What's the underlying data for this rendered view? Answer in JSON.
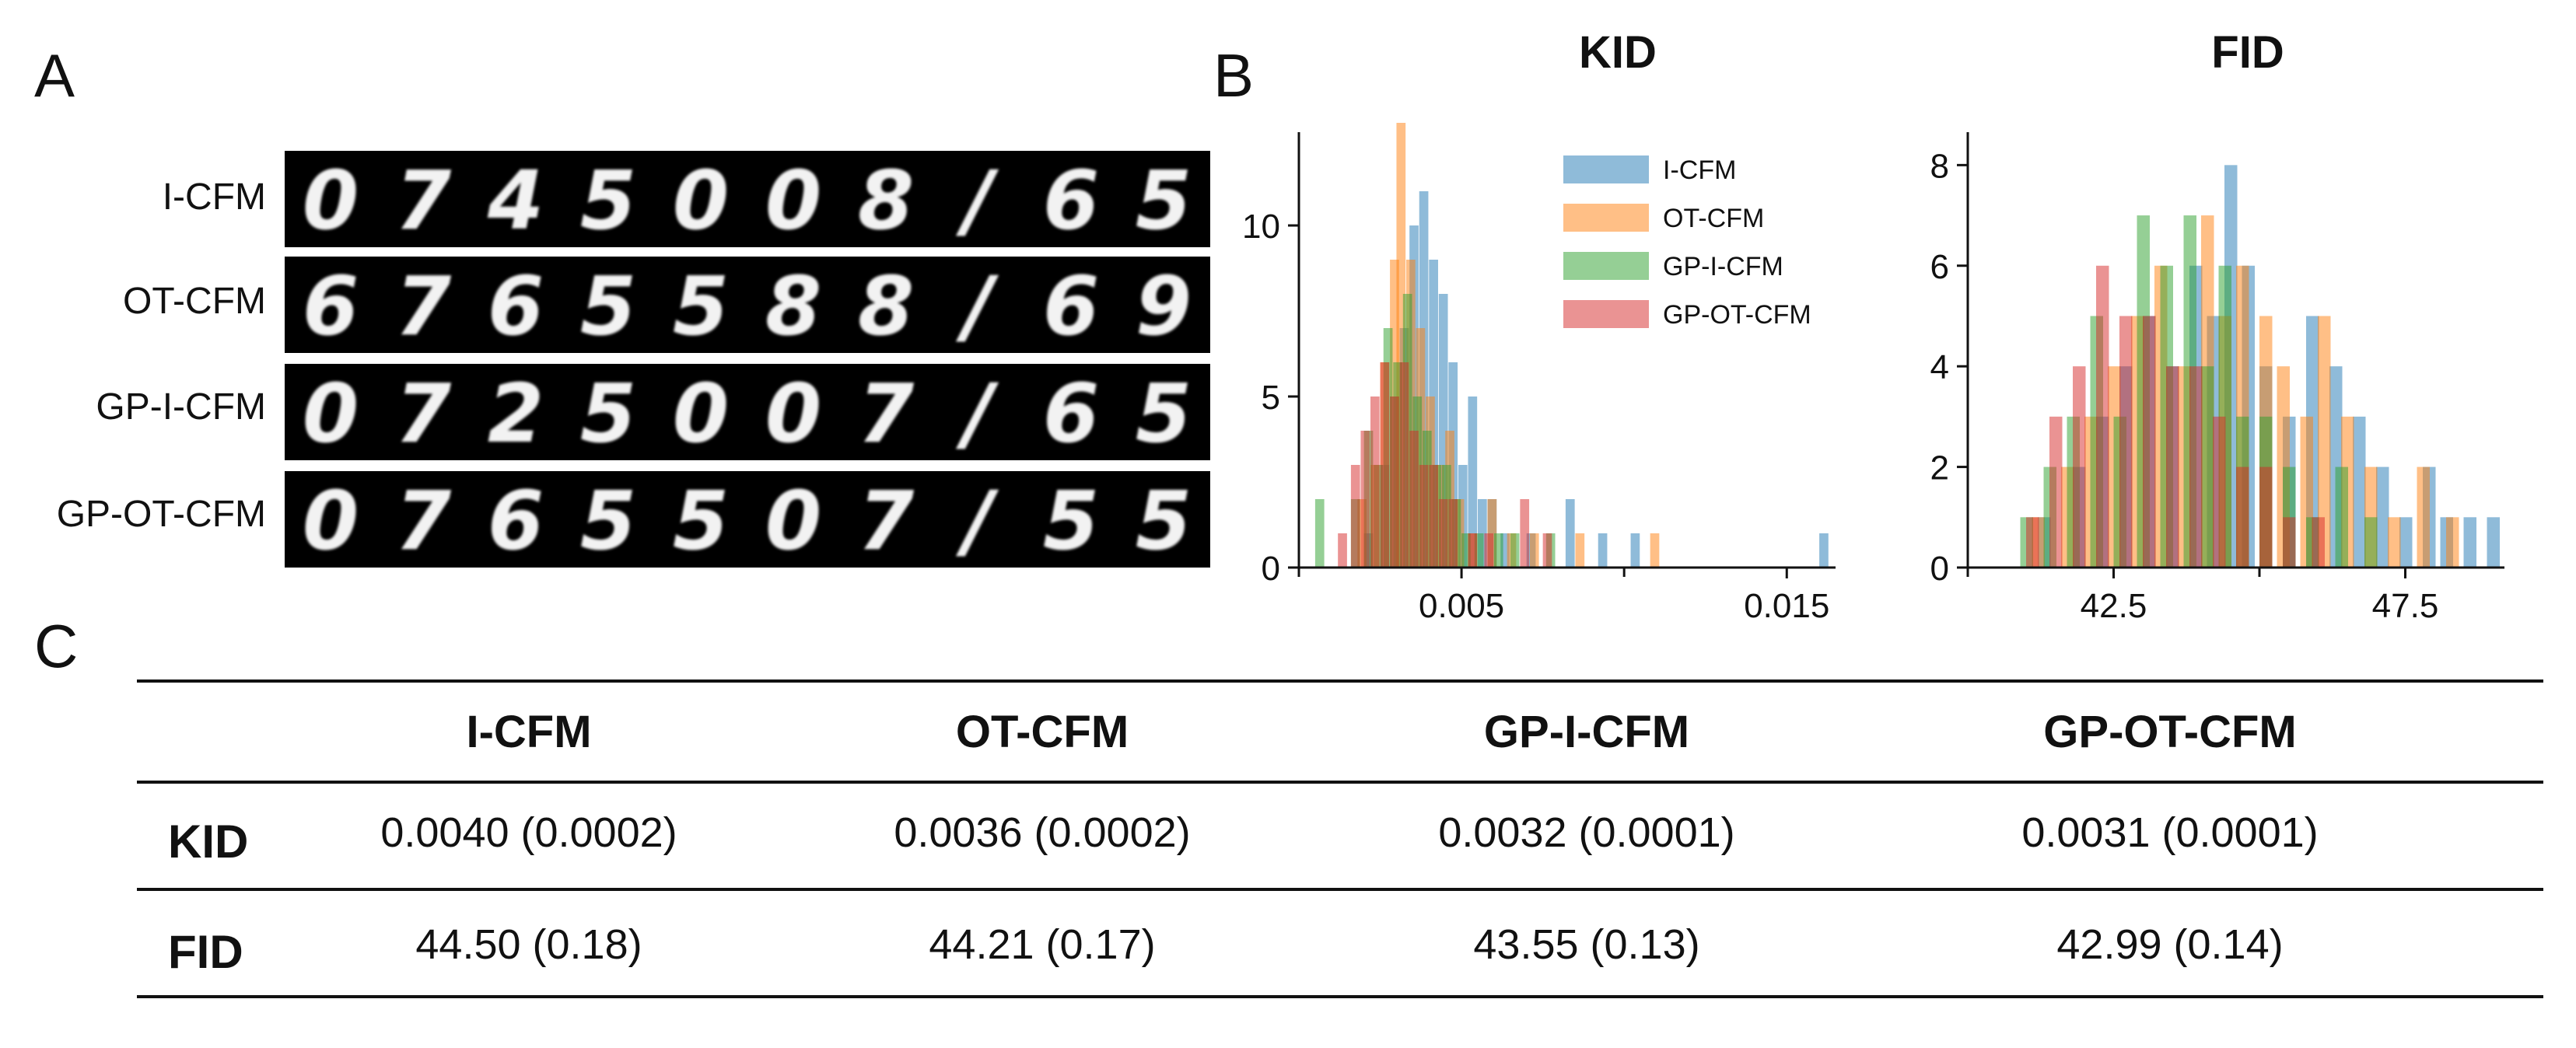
{
  "panels": {
    "a": "A",
    "b": "B",
    "c": "C"
  },
  "samples": {
    "rows": [
      "I-CFM",
      "OT-CFM",
      "GP-I-CFM",
      "GP-OT-CFM"
    ],
    "digits": [
      [
        "0",
        "7",
        "4",
        "5",
        "0",
        "0",
        "8",
        "/",
        "6",
        "5"
      ],
      [
        "6",
        "7",
        "6",
        "5",
        "5",
        "8",
        "8",
        "/",
        "6",
        "9"
      ],
      [
        "0",
        "7",
        "2",
        "5",
        "0",
        "0",
        "7",
        "/",
        "6",
        "5"
      ],
      [
        "0",
        "7",
        "6",
        "5",
        "5",
        "0",
        "7",
        "/",
        "5",
        "5"
      ]
    ]
  },
  "chart_data": [
    {
      "type": "histogram",
      "title": "KID",
      "xlabel": "",
      "ylabel": "",
      "xlim": [
        0.0,
        0.0165
      ],
      "ylim": [
        0,
        12.5
      ],
      "xticks": [
        0.005,
        0.015
      ],
      "xtick_labels": [
        "0.005",
        "0.015"
      ],
      "yticks": [
        0,
        5,
        10
      ],
      "ytick_labels": [
        "0",
        "5",
        "10"
      ],
      "legend": "top-right",
      "series": [
        {
          "name": "I-CFM",
          "color": "#1f77b4",
          "bins": [
            [
              0.002,
              1
            ],
            [
              0.0025,
              3
            ],
            [
              0.0028,
              5
            ],
            [
              0.0031,
              7
            ],
            [
              0.0034,
              10
            ],
            [
              0.0037,
              11
            ],
            [
              0.004,
              9
            ],
            [
              0.0043,
              8
            ],
            [
              0.0046,
              6
            ],
            [
              0.0049,
              3
            ],
            [
              0.0052,
              5
            ],
            [
              0.0055,
              2
            ],
            [
              0.0058,
              2
            ],
            [
              0.0062,
              1
            ],
            [
              0.007,
              1
            ],
            [
              0.0082,
              2
            ],
            [
              0.0092,
              1
            ],
            [
              0.0102,
              1
            ],
            [
              0.016,
              1
            ]
          ]
        },
        {
          "name": "OT-CFM",
          "color": "#ff7f0e",
          "bins": [
            [
              0.0018,
              2
            ],
            [
              0.0022,
              3
            ],
            [
              0.0025,
              6
            ],
            [
              0.0028,
              9
            ],
            [
              0.003,
              13
            ],
            [
              0.0033,
              9
            ],
            [
              0.0036,
              7
            ],
            [
              0.0039,
              5
            ],
            [
              0.0042,
              3
            ],
            [
              0.0045,
              4
            ],
            [
              0.0048,
              2
            ],
            [
              0.0052,
              1
            ],
            [
              0.0058,
              2
            ],
            [
              0.0064,
              1
            ],
            [
              0.0071,
              1
            ],
            [
              0.0085,
              1
            ],
            [
              0.0108,
              1
            ]
          ]
        },
        {
          "name": "GP-I-CFM",
          "color": "#2ca02c",
          "bins": [
            [
              0.0005,
              2
            ],
            [
              0.0016,
              2
            ],
            [
              0.002,
              4
            ],
            [
              0.0023,
              3
            ],
            [
              0.0026,
              7
            ],
            [
              0.0029,
              6
            ],
            [
              0.0032,
              8
            ],
            [
              0.0035,
              5
            ],
            [
              0.0038,
              4
            ],
            [
              0.0041,
              3
            ],
            [
              0.0044,
              3
            ],
            [
              0.0047,
              2
            ],
            [
              0.005,
              1
            ],
            [
              0.0054,
              1
            ],
            [
              0.006,
              1
            ],
            [
              0.0065,
              1
            ],
            [
              0.0076,
              1
            ]
          ]
        },
        {
          "name": "GP-OT-CFM",
          "color": "#d62728",
          "bins": [
            [
              0.0012,
              1
            ],
            [
              0.0016,
              3
            ],
            [
              0.0019,
              4
            ],
            [
              0.0022,
              5
            ],
            [
              0.0025,
              6
            ],
            [
              0.0028,
              5
            ],
            [
              0.0031,
              6
            ],
            [
              0.0034,
              4
            ],
            [
              0.0037,
              3
            ],
            [
              0.004,
              3
            ],
            [
              0.0043,
              2
            ],
            [
              0.0046,
              2
            ],
            [
              0.0052,
              1
            ],
            [
              0.0057,
              1
            ],
            [
              0.0068,
              2
            ],
            [
              0.0075,
              1
            ]
          ]
        }
      ]
    },
    {
      "type": "histogram",
      "title": "FID",
      "xlabel": "",
      "ylabel": "",
      "xlim": [
        40.0,
        49.2
      ],
      "ylim": [
        0,
        8.5
      ],
      "xticks": [
        42.5,
        47.5
      ],
      "xtick_labels": [
        "42.5",
        "47.5"
      ],
      "yticks": [
        0,
        2,
        4,
        6,
        8
      ],
      "ytick_labels": [
        "0",
        "2",
        "4",
        "6",
        "8"
      ],
      "series": [
        {
          "name": "I-CFM",
          "color": "#1f77b4",
          "bins": [
            [
              41.2,
              1
            ],
            [
              41.8,
              2
            ],
            [
              42.2,
              3
            ],
            [
              42.6,
              4
            ],
            [
              43.0,
              5
            ],
            [
              43.4,
              4
            ],
            [
              43.8,
              6
            ],
            [
              44.1,
              5
            ],
            [
              44.4,
              8
            ],
            [
              44.7,
              6
            ],
            [
              45.0,
              4
            ],
            [
              45.4,
              3
            ],
            [
              45.8,
              5
            ],
            [
              46.2,
              4
            ],
            [
              46.6,
              3
            ],
            [
              47.0,
              2
            ],
            [
              47.4,
              1
            ],
            [
              47.8,
              2
            ],
            [
              48.1,
              1
            ],
            [
              48.5,
              1
            ],
            [
              48.9,
              1
            ]
          ]
        },
        {
          "name": "OT-CFM",
          "color": "#ff7f0e",
          "bins": [
            [
              41.1,
              1
            ],
            [
              41.6,
              2
            ],
            [
              42.0,
              3
            ],
            [
              42.4,
              4
            ],
            [
              42.8,
              5
            ],
            [
              43.2,
              6
            ],
            [
              43.6,
              4
            ],
            [
              44.0,
              7
            ],
            [
              44.3,
              5
            ],
            [
              44.6,
              6
            ],
            [
              45.0,
              5
            ],
            [
              45.3,
              4
            ],
            [
              45.7,
              3
            ],
            [
              46.0,
              5
            ],
            [
              46.4,
              3
            ],
            [
              46.8,
              2
            ],
            [
              47.2,
              1
            ],
            [
              47.7,
              2
            ],
            [
              48.2,
              1
            ]
          ]
        },
        {
          "name": "GP-I-CFM",
          "color": "#2ca02c",
          "bins": [
            [
              40.9,
              1
            ],
            [
              41.3,
              2
            ],
            [
              41.7,
              3
            ],
            [
              42.1,
              5
            ],
            [
              42.5,
              3
            ],
            [
              42.9,
              7
            ],
            [
              43.3,
              6
            ],
            [
              43.7,
              7
            ],
            [
              44.0,
              4
            ],
            [
              44.3,
              6
            ],
            [
              44.6,
              3
            ],
            [
              45.0,
              3
            ],
            [
              45.4,
              2
            ],
            [
              45.8,
              1
            ],
            [
              46.3,
              2
            ],
            [
              46.8,
              1
            ]
          ]
        },
        {
          "name": "GP-OT-CFM",
          "color": "#d62728",
          "bins": [
            [
              41.0,
              1
            ],
            [
              41.4,
              3
            ],
            [
              41.8,
              4
            ],
            [
              42.2,
              6
            ],
            [
              42.6,
              5
            ],
            [
              43.0,
              5
            ],
            [
              43.4,
              4
            ],
            [
              43.8,
              4
            ],
            [
              44.2,
              3
            ],
            [
              44.6,
              2
            ],
            [
              45.0,
              2
            ],
            [
              45.4,
              1
            ],
            [
              45.9,
              1
            ]
          ]
        }
      ]
    },
    {
      "type": "table",
      "columns": [
        "",
        "I-CFM",
        "OT-CFM",
        "GP-I-CFM",
        "GP-OT-CFM"
      ],
      "rows": [
        {
          "label": "KID",
          "values": [
            "0.0040 (0.0002)",
            "0.0036 (0.0002)",
            "0.0032 (0.0001)",
            "0.0031 (0.0001)"
          ]
        },
        {
          "label": "FID",
          "values": [
            "44.50 (0.18)",
            "44.21 (0.17)",
            "43.55 (0.13)",
            "42.99 (0.14)"
          ]
        }
      ]
    }
  ]
}
